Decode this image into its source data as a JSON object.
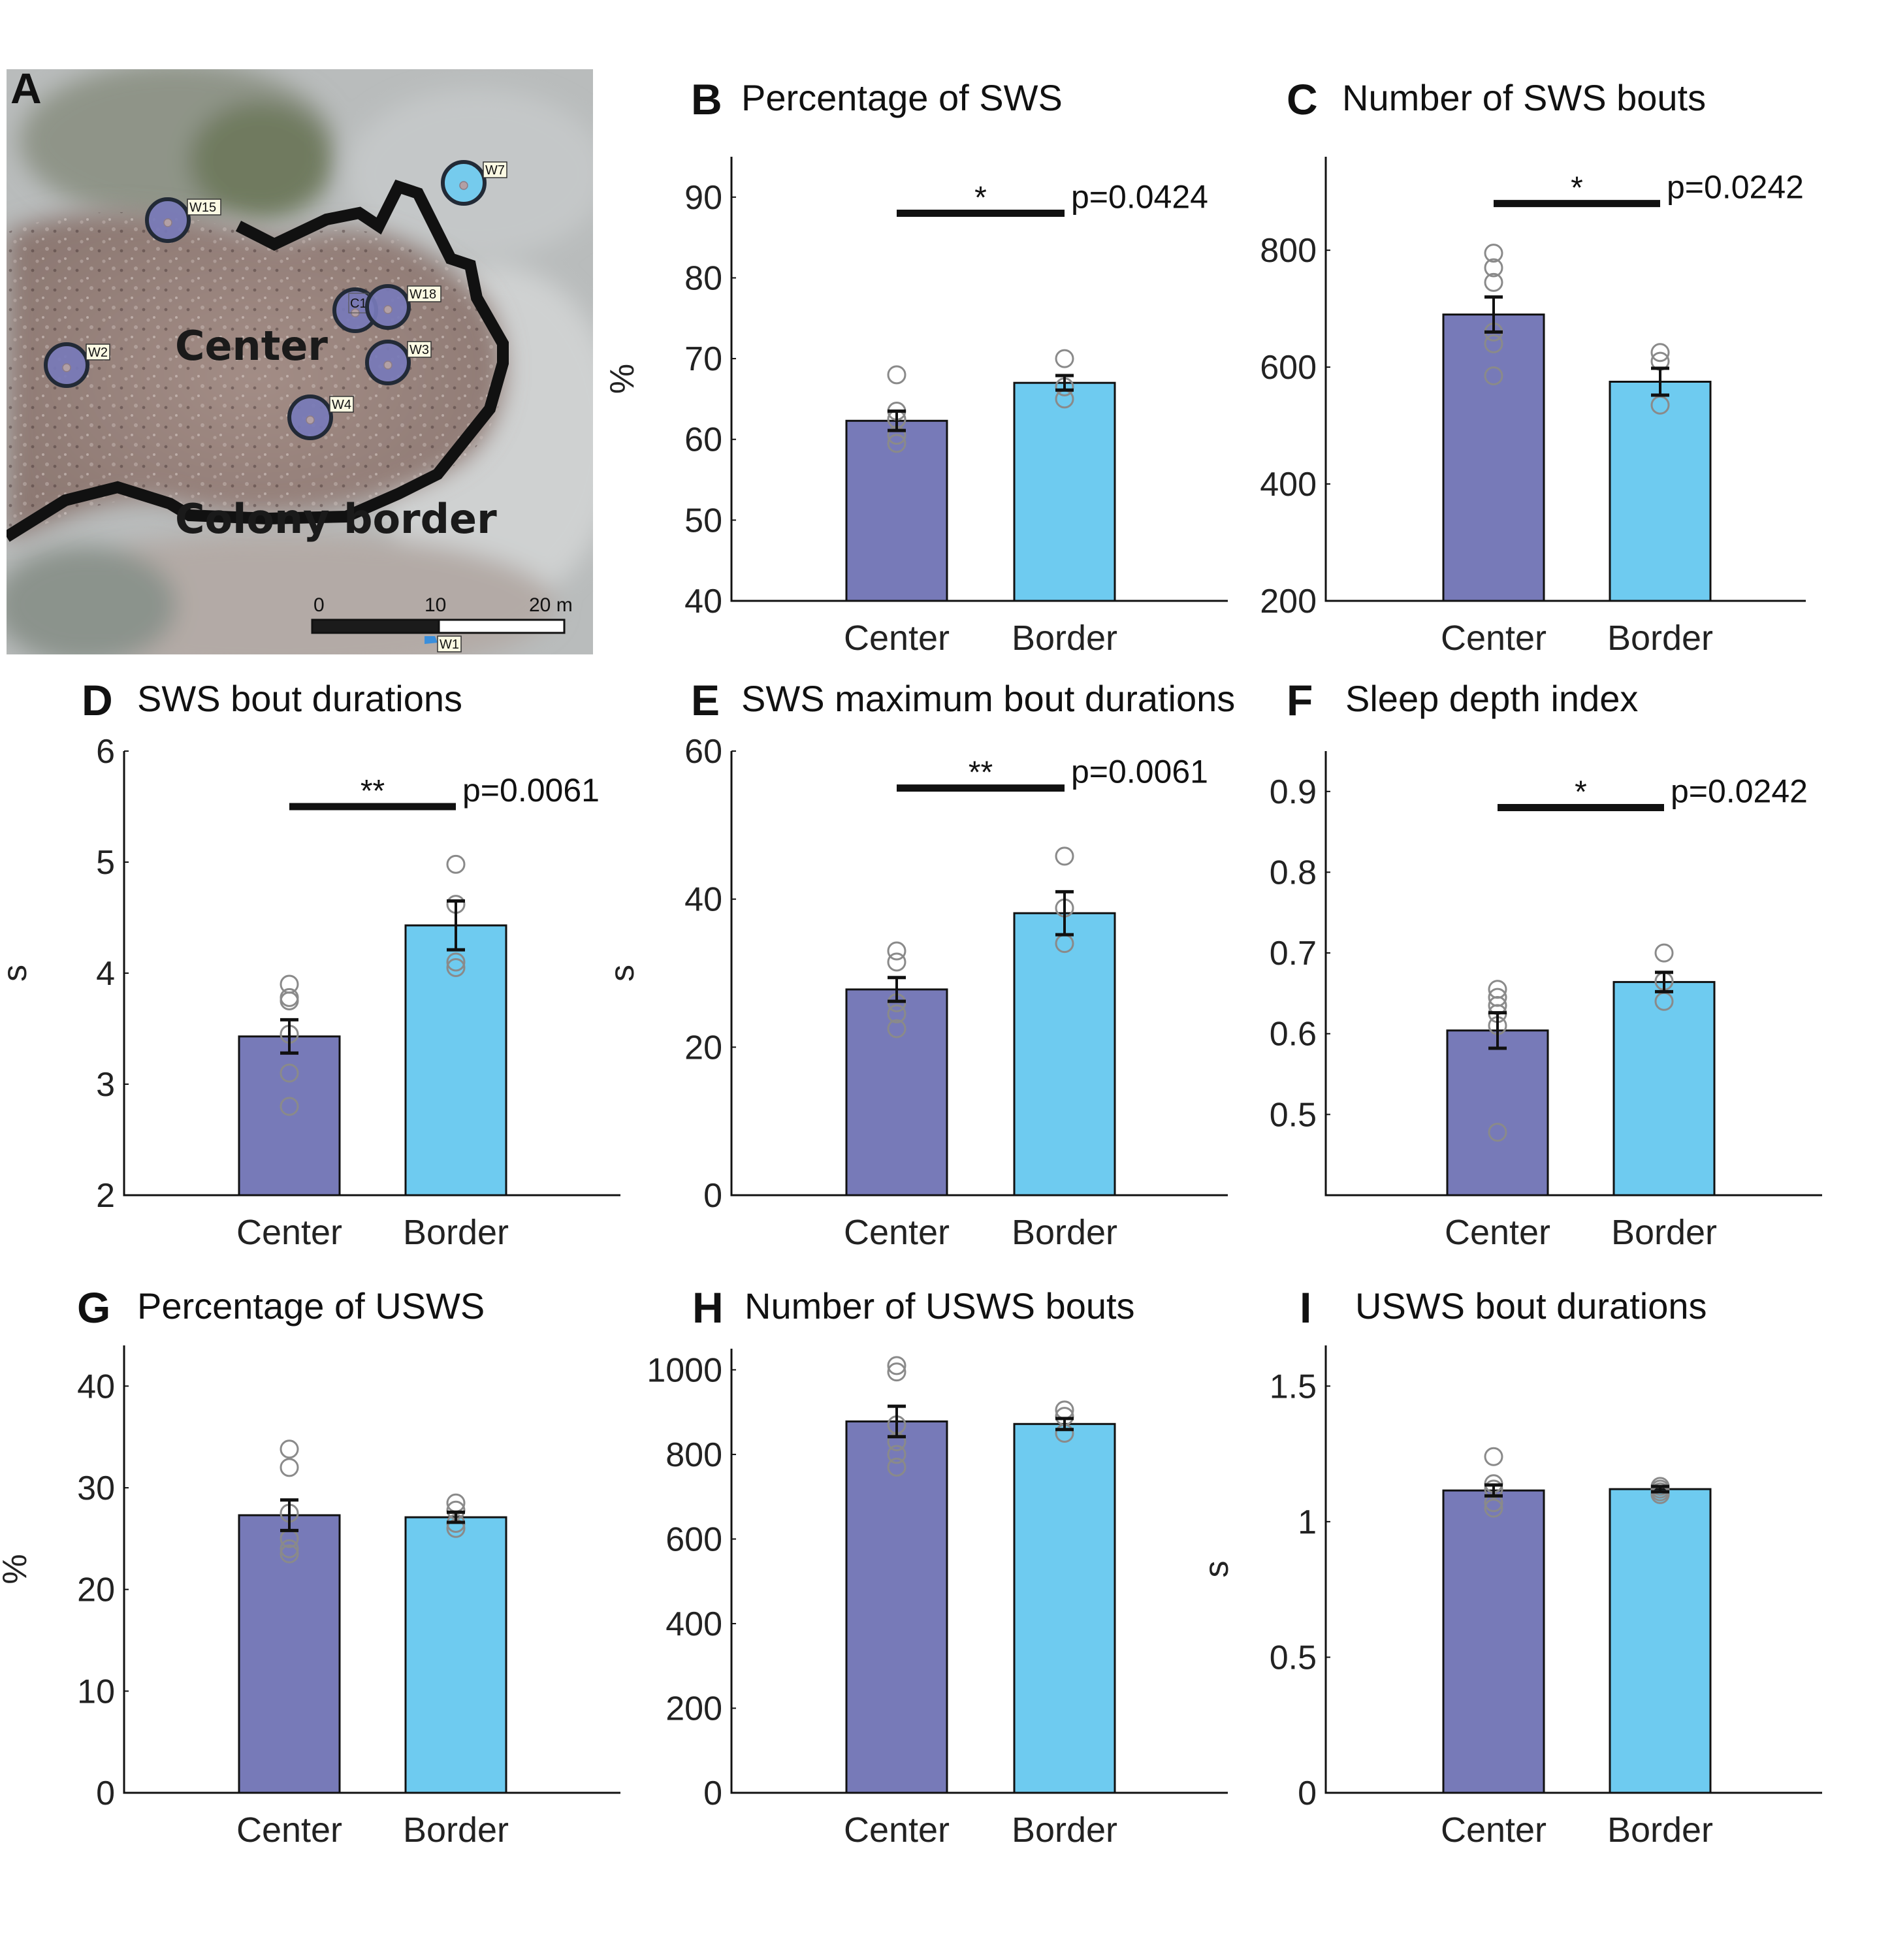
{
  "figure": {
    "colors": {
      "center": "#777ab8",
      "border": "#6ecbf0",
      "points": "#8a8a8a",
      "axis": "#111111",
      "border_line": "#111111"
    }
  },
  "map_panel": {
    "letter": "A",
    "center_label": "Center",
    "border_label": "Colony border",
    "scale_bar": {
      "labels": [
        "0",
        "10",
        "20 m"
      ]
    },
    "markers": [
      {
        "id": "W15",
        "group": "center"
      },
      {
        "id": "W2",
        "group": "center"
      },
      {
        "id": "C1",
        "group": "center"
      },
      {
        "id": "W18",
        "group": "center"
      },
      {
        "id": "W3",
        "group": "center"
      },
      {
        "id": "W4",
        "group": "center"
      },
      {
        "id": "W7",
        "group": "border"
      },
      {
        "id": "W1",
        "group": "flag"
      }
    ]
  },
  "chart_data": [
    {
      "panel": "B",
      "type": "bar",
      "title": "Percentage of SWS",
      "ylabel": "%",
      "categories": [
        "Center",
        "Border"
      ],
      "ylim": [
        40,
        95
      ],
      "yticks": [
        40,
        50,
        60,
        70,
        80,
        90
      ],
      "means": [
        62.3,
        67.0
      ],
      "sem": [
        1.2,
        0.9
      ],
      "points": [
        [
          68,
          63.5,
          62.5,
          60.5,
          59.5
        ],
        [
          70,
          66.5,
          65
        ]
      ],
      "significance": {
        "stars": "*",
        "p": "p=0.0424",
        "y": 88
      }
    },
    {
      "panel": "C",
      "type": "bar",
      "title": "Number of SWS bouts",
      "ylabel": "",
      "categories": [
        "Center",
        "Border"
      ],
      "ylim": [
        200,
        960
      ],
      "yticks": [
        200,
        400,
        600,
        800
      ],
      "means": [
        690,
        575
      ],
      "sem": [
        30,
        23
      ],
      "points": [
        [
          795,
          770,
          745,
          660,
          640,
          585
        ],
        [
          625,
          610,
          535
        ]
      ],
      "significance": {
        "stars": "*",
        "p": "p=0.0242",
        "y": 880
      }
    },
    {
      "panel": "D",
      "type": "bar",
      "title": "SWS bout durations",
      "ylabel": "s",
      "categories": [
        "Center",
        "Border"
      ],
      "ylim": [
        2,
        6
      ],
      "yticks": [
        2,
        3,
        4,
        5,
        6
      ],
      "means": [
        3.43,
        4.43
      ],
      "sem": [
        0.15,
        0.22
      ],
      "points": [
        [
          3.9,
          3.78,
          3.75,
          3.45,
          3.1,
          2.8
        ],
        [
          4.98,
          4.62,
          4.1,
          4.05
        ]
      ],
      "significance": {
        "stars": "**",
        "p": "p=0.0061",
        "y": 5.5
      }
    },
    {
      "panel": "E",
      "type": "bar",
      "title": "SWS maximum bout durations",
      "ylabel": "s",
      "categories": [
        "Center",
        "Border"
      ],
      "ylim": [
        0,
        60
      ],
      "yticks": [
        0,
        20,
        40,
        60
      ],
      "means": [
        27.8,
        38.1
      ],
      "sem": [
        1.6,
        2.9
      ],
      "points": [
        [
          33,
          31.5,
          26,
          24.5,
          22.5
        ],
        [
          45.8,
          38.8,
          34
        ]
      ],
      "significance": {
        "stars": "**",
        "p": "p=0.0061",
        "y": 55
      }
    },
    {
      "panel": "F",
      "type": "bar",
      "title": "Sleep depth index",
      "ylabel": "",
      "categories": [
        "Center",
        "Border"
      ],
      "ylim": [
        0.4,
        0.95
      ],
      "yticks": [
        0.5,
        0.6,
        0.7,
        0.8,
        0.9
      ],
      "means": [
        0.604,
        0.664
      ],
      "sem": [
        0.022,
        0.012
      ],
      "points": [
        [
          0.655,
          0.645,
          0.635,
          0.625,
          0.61,
          0.478
        ],
        [
          0.7,
          0.665,
          0.64
        ]
      ],
      "significance": {
        "stars": "*",
        "p": "p=0.0242",
        "y": 0.88
      }
    },
    {
      "panel": "G",
      "type": "bar",
      "title": "Percentage of USWS",
      "ylabel": "%",
      "categories": [
        "Center",
        "Border"
      ],
      "ylim": [
        0,
        44
      ],
      "yticks": [
        0,
        10,
        20,
        30,
        40
      ],
      "means": [
        27.3,
        27.1
      ],
      "sem": [
        1.5,
        0.5
      ],
      "points": [
        [
          33.8,
          32,
          27.5,
          25,
          24,
          23.5
        ],
        [
          28.5,
          27.8,
          26.5,
          26
        ]
      ],
      "significance": null
    },
    {
      "panel": "H",
      "type": "bar",
      "title": "Number of USWS bouts",
      "ylabel": "",
      "categories": [
        "Center",
        "Border"
      ],
      "ylim": [
        0,
        1050
      ],
      "yticks": [
        0,
        200,
        400,
        600,
        800,
        1000
      ],
      "means": [
        878,
        872
      ],
      "sem": [
        36,
        13
      ],
      "points": [
        [
          1010,
          995,
          870,
          830,
          800,
          770
        ],
        [
          905,
          890,
          850
        ]
      ],
      "significance": null
    },
    {
      "panel": "I",
      "type": "bar",
      "title": "USWS bout durations",
      "ylabel": "s",
      "categories": [
        "Center",
        "Border"
      ],
      "ylim": [
        0,
        1.65
      ],
      "yticks": [
        0,
        0.5,
        1,
        1.5
      ],
      "means": [
        1.115,
        1.12
      ],
      "sem": [
        0.02,
        0.01
      ],
      "points": [
        [
          1.24,
          1.14,
          1.12,
          1.07,
          1.05
        ],
        [
          1.13,
          1.12,
          1.11,
          1.1
        ]
      ],
      "significance": null
    }
  ]
}
